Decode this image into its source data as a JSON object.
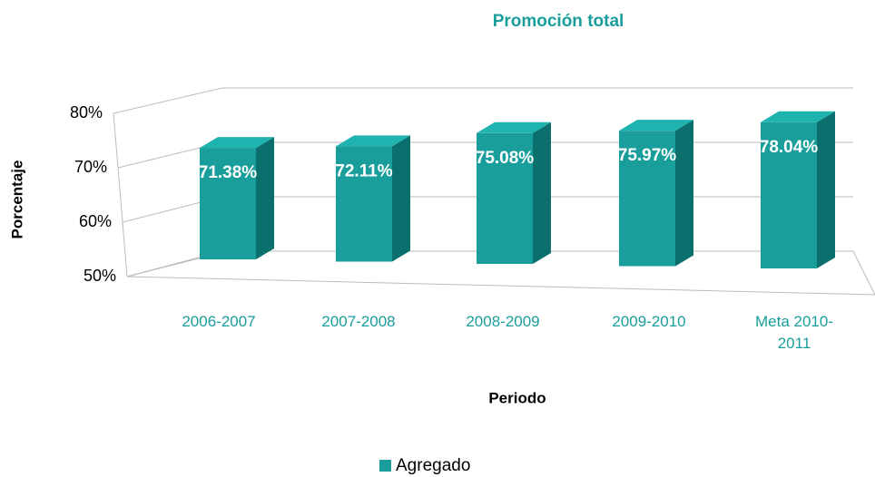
{
  "chart_data": {
    "type": "bar3d",
    "title": "Promoción total",
    "x_label": "Periodo",
    "y_label": "Porcentaje",
    "categories": [
      "2006-2007",
      "2007-2008",
      "2008-2009",
      "2009-2010",
      "Meta 2010-2011"
    ],
    "series": [
      {
        "name": "Agregado",
        "color": "#1a9e9c",
        "values": [
          71.38,
          72.11,
          75.08,
          75.97,
          78.04
        ],
        "value_labels": [
          "71.38%",
          "72.11%",
          "75.08%",
          "75.97%",
          "78.04%"
        ]
      }
    ],
    "ylim": [
      50,
      80
    ],
    "yticks": [
      {
        "value": 50,
        "label": "50%"
      },
      {
        "value": 60,
        "label": "60%"
      },
      {
        "value": 70,
        "label": "70%"
      },
      {
        "value": 80,
        "label": "80%"
      }
    ],
    "grid": true,
    "legend": "bottom"
  }
}
